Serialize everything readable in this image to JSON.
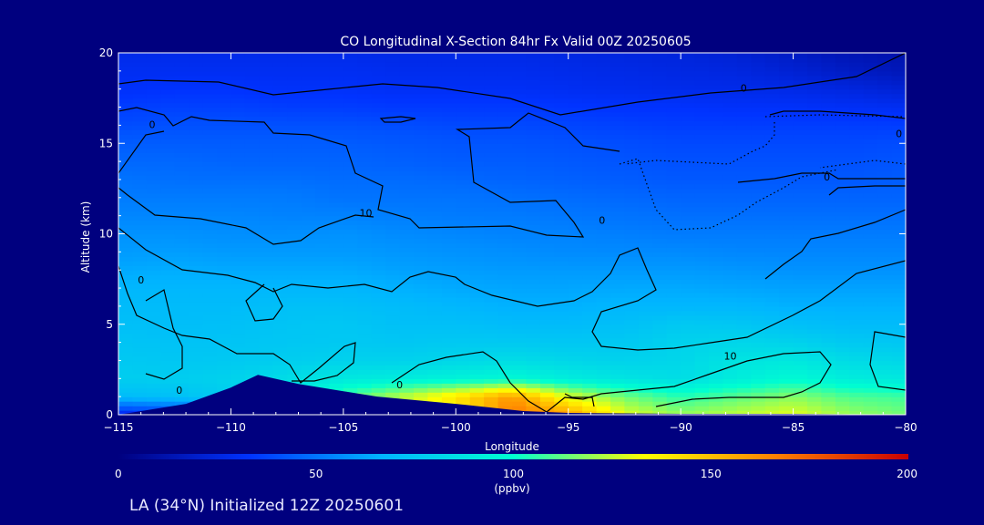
{
  "chart_data": {
    "type": "heatmap",
    "title": "CO Longitudinal X-Section 84hr  Fx Valid 00Z 20250605",
    "xlabel": "Longitude",
    "ylabel": "Altitude (km)",
    "xlim": [
      -115,
      -80
    ],
    "ylim": [
      0,
      20
    ],
    "xticks": [
      "−115",
      "−110",
      "−105",
      "−100",
      "−95",
      "−90",
      "−85",
      "−80"
    ],
    "xtick_values": [
      -115,
      -110,
      -105,
      -100,
      -95,
      -90,
      -85,
      -80
    ],
    "yticks": [
      "0",
      "5",
      "10",
      "15",
      "20"
    ],
    "ytick_values": [
      0,
      5,
      10,
      15,
      20
    ],
    "colorbar": {
      "min": 0,
      "max": 200,
      "ticks": [
        "0",
        "50",
        "100",
        "150",
        "200"
      ],
      "tick_values": [
        0,
        50,
        100,
        150,
        200
      ],
      "label": "(ppbv)",
      "colors": [
        "#00007f",
        "#0033ff",
        "#00b4ff",
        "#00ffd0",
        "#ffff00",
        "#ff7f00",
        "#c80000"
      ]
    },
    "x": [
      -115,
      -112.5,
      -110,
      -107.5,
      -105,
      -102.5,
      -100,
      -97.5,
      -95,
      -92.5,
      -90,
      -87.5,
      -85,
      -82.5,
      -80
    ],
    "y": [
      0,
      1,
      2,
      3,
      4,
      5,
      6,
      7,
      8,
      9,
      10,
      11,
      12,
      13,
      14,
      15,
      16,
      17,
      18,
      19,
      20
    ],
    "values": [
      [
        25,
        30,
        38,
        60,
        80,
        105,
        135,
        170,
        160,
        130,
        120,
        125,
        130,
        120,
        115
      ],
      [
        70,
        72,
        78,
        88,
        110,
        125,
        140,
        160,
        130,
        115,
        105,
        112,
        118,
        110,
        108
      ],
      [
        78,
        78,
        80,
        85,
        90,
        92,
        95,
        98,
        92,
        88,
        85,
        92,
        98,
        92,
        90
      ],
      [
        76,
        75,
        76,
        78,
        80,
        80,
        82,
        85,
        82,
        80,
        82,
        88,
        90,
        84,
        82
      ],
      [
        74,
        73,
        74,
        75,
        76,
        75,
        76,
        76,
        75,
        76,
        80,
        82,
        80,
        76,
        75
      ],
      [
        72,
        71,
        72,
        74,
        75,
        72,
        72,
        70,
        70,
        72,
        76,
        75,
        72,
        70,
        70
      ],
      [
        70,
        70,
        70,
        72,
        72,
        70,
        68,
        66,
        66,
        68,
        68,
        68,
        66,
        66,
        66
      ],
      [
        68,
        68,
        68,
        68,
        68,
        66,
        64,
        63,
        63,
        64,
        64,
        63,
        62,
        62,
        62
      ],
      [
        64,
        65,
        64,
        64,
        64,
        62,
        61,
        60,
        60,
        60,
        60,
        59,
        58,
        58,
        58
      ],
      [
        60,
        61,
        60,
        60,
        60,
        59,
        58,
        57,
        56,
        56,
        56,
        55,
        55,
        55,
        55
      ],
      [
        58,
        58,
        57,
        57,
        58,
        56,
        55,
        54,
        54,
        53,
        52,
        52,
        52,
        52,
        52
      ],
      [
        55,
        55,
        55,
        54,
        54,
        53,
        52,
        52,
        51,
        50,
        49,
        49,
        49,
        49,
        49
      ],
      [
        52,
        52,
        52,
        52,
        50,
        50,
        50,
        49,
        48,
        47,
        46,
        46,
        46,
        46,
        46
      ],
      [
        50,
        49,
        49,
        49,
        48,
        48,
        47,
        46,
        45,
        44,
        43,
        43,
        43,
        43,
        44
      ],
      [
        47,
        47,
        46,
        46,
        46,
        45,
        44,
        44,
        43,
        42,
        41,
        41,
        41,
        41,
        42
      ],
      [
        44,
        44,
        44,
        44,
        44,
        43,
        42,
        42,
        41,
        40,
        39,
        39,
        39,
        39,
        40
      ],
      [
        40,
        41,
        41,
        41,
        41,
        40,
        39,
        39,
        38,
        37,
        36,
        36,
        36,
        36,
        36
      ],
      [
        36,
        37,
        37,
        36,
        36,
        35,
        35,
        35,
        34,
        33,
        33,
        32,
        32,
        31,
        30
      ],
      [
        32,
        33,
        33,
        32,
        32,
        31,
        31,
        31,
        30,
        29,
        28,
        28,
        27,
        25,
        22
      ],
      [
        30,
        30,
        30,
        30,
        30,
        29,
        29,
        29,
        28,
        27,
        26,
        25,
        22,
        18,
        15
      ],
      [
        28,
        28,
        28,
        28,
        28,
        27,
        27,
        27,
        26,
        25,
        24,
        22,
        18,
        14,
        12
      ]
    ],
    "terrain": {
      "x": [
        -115,
        -112,
        -110,
        -108.8,
        -107,
        -105,
        -103.5,
        -100,
        -97,
        -95,
        -90,
        -85,
        -80
      ],
      "y": [
        0,
        0.6,
        1.5,
        2.2,
        1.7,
        1.3,
        1.0,
        0.6,
        0.2,
        0.1,
        0.05,
        0.05,
        0
      ]
    },
    "contour_labels": [
      {
        "text": "0",
        "x": -114,
        "y": 7.4
      },
      {
        "text": "0",
        "x": -112.3,
        "y": 1.3
      },
      {
        "text": "10",
        "x": -104,
        "y": 11.1
      },
      {
        "text": "0",
        "x": -102.5,
        "y": 1.6
      },
      {
        "text": "0",
        "x": -93.5,
        "y": 10.7
      },
      {
        "text": "10",
        "x": -87.8,
        "y": 3.2
      },
      {
        "text": "0",
        "x": -83.5,
        "y": 13.1
      },
      {
        "text": "0",
        "x": -80.3,
        "y": 15.5
      },
      {
        "text": "0",
        "x": -87.2,
        "y": 18.0
      },
      {
        "text": "0",
        "x": -113.5,
        "y": 16.0
      }
    ],
    "subtitle": "LA (34°N) Initialized 12Z 20250601"
  }
}
